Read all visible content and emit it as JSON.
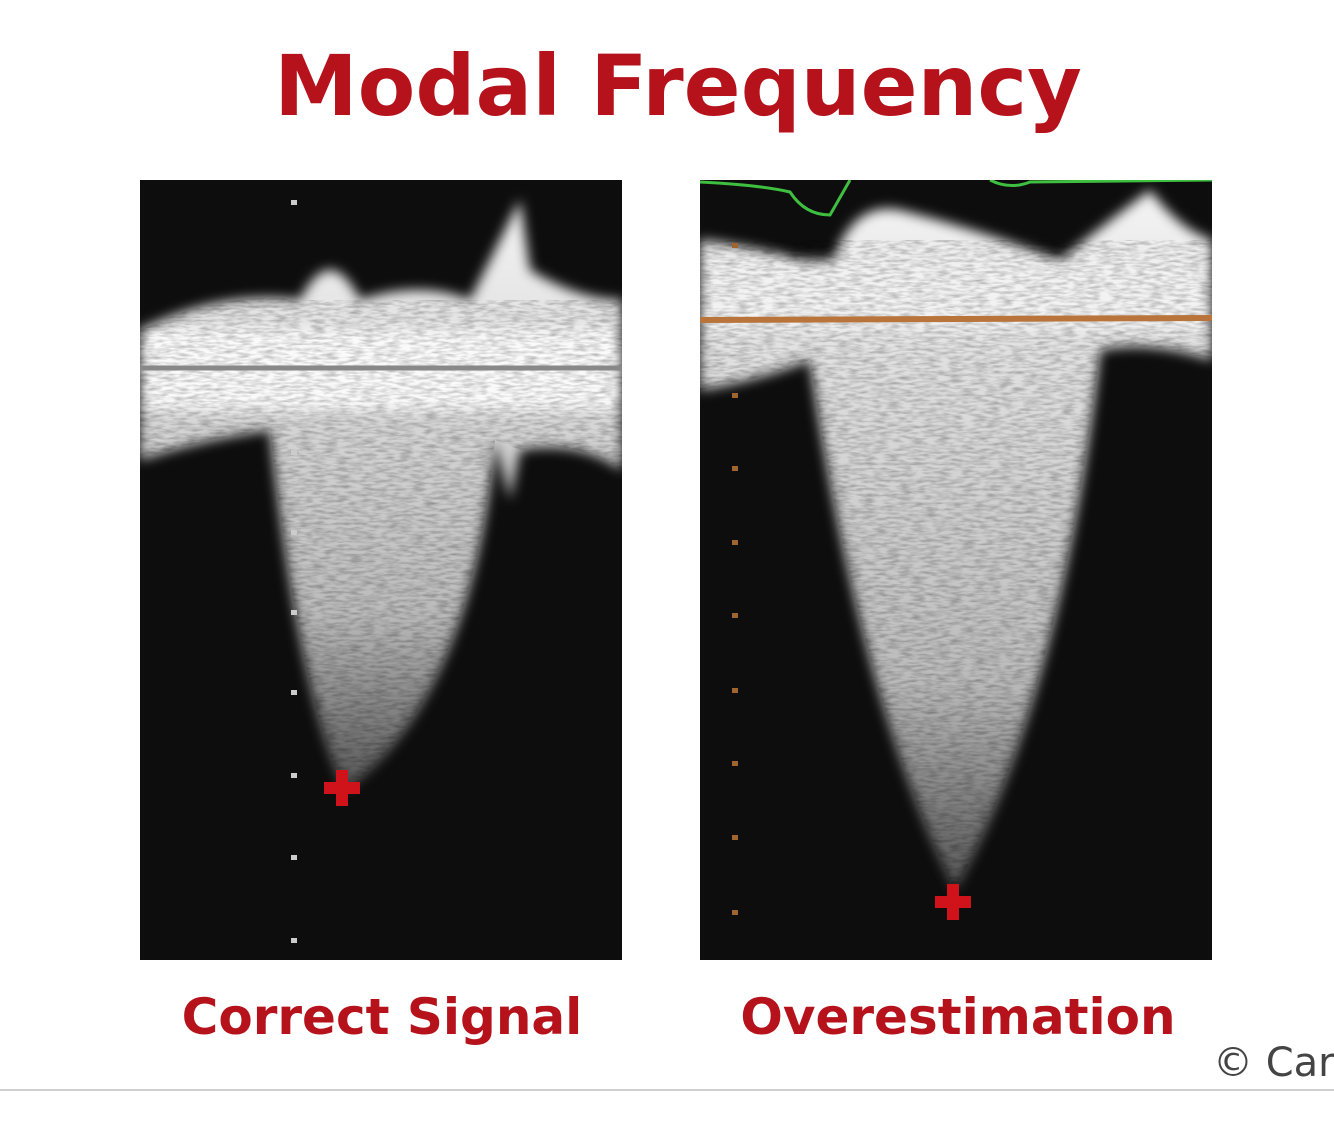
{
  "title": "Modal Frequency",
  "panels": [
    {
      "label": "Correct Signal"
    },
    {
      "label": "Overestimation"
    }
  ],
  "copyright": "© Car"
}
